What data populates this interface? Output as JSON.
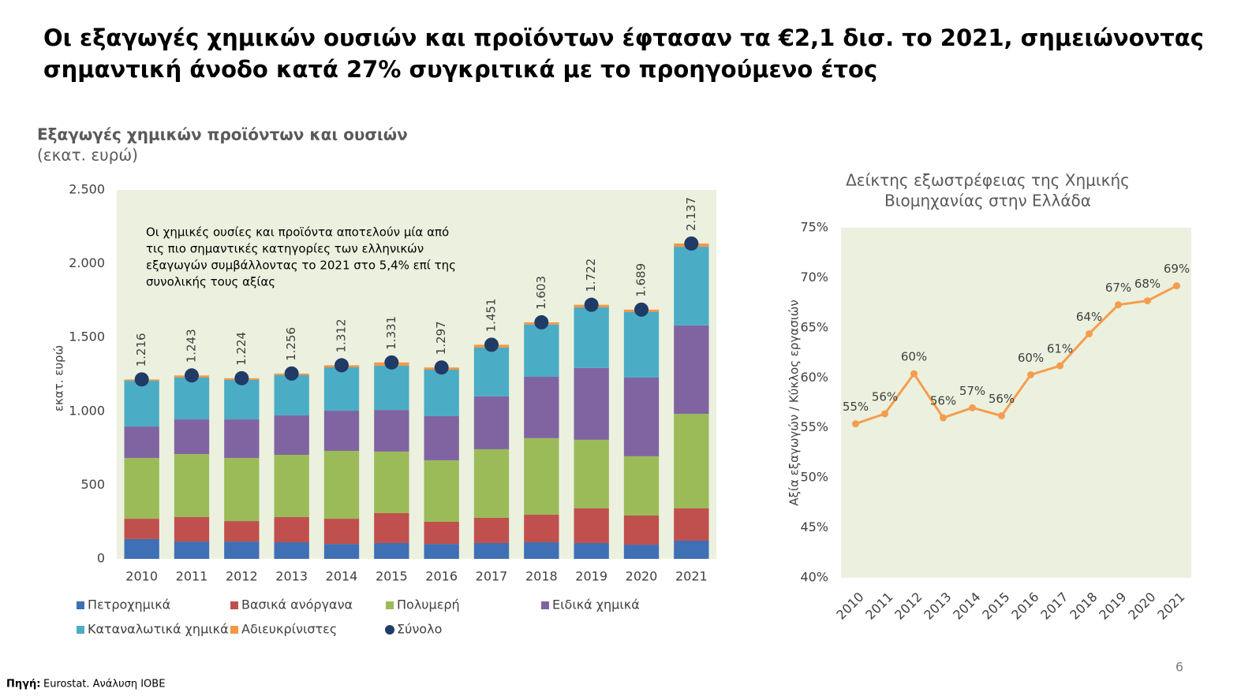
{
  "headline": [
    "Οι εξαγωγές χημικών ουσιών και προϊόντων έφτασαν τα €2,1 δισ. το 2021, σημειώνοντας",
    "σημαντική άνοδο κατά 27% συγκριτικά με το προηγούμενο έτος"
  ],
  "chart_data": [
    {
      "type": "bar",
      "stacked": true,
      "title": "Εξαγωγές χημικών προϊόντων και ουσιών",
      "subtitle": "(εκατ. ευρώ)",
      "y_label": "εκατ. ευρώ",
      "annotation": [
        "Οι χημικές ουσίες και προϊόντα αποτελούν μία από",
        "τις πιο σημαντικές κατηγορίες των ελληνικών",
        "εξαγωγών συμβάλλοντας το 2021 στο 5,4% επί της",
        "συνολικής τους αξίας"
      ],
      "categories": [
        "2010",
        "2011",
        "2012",
        "2013",
        "2014",
        "2015",
        "2016",
        "2017",
        "2018",
        "2019",
        "2020",
        "2021"
      ],
      "series": [
        {
          "name": "Πετροχημικά",
          "color": "#3f6fb5",
          "values": [
            134,
            117,
            117,
            112,
            101,
            107,
            101,
            107,
            112,
            107,
            96,
            123
          ]
        },
        {
          "name": "Βασικά ανόργανα",
          "color": "#c0504d",
          "values": [
            138,
            166,
            139,
            171,
            171,
            203,
            150,
            171,
            187,
            235,
            198,
            219
          ]
        },
        {
          "name": "Πολυμερή",
          "color": "#9bbb59",
          "values": [
            412,
            427,
            428,
            422,
            460,
            417,
            417,
            465,
            519,
            465,
            401,
            641
          ]
        },
        {
          "name": "Ειδικά χημικά",
          "color": "#8064a2",
          "values": [
            213,
            235,
            261,
            267,
            272,
            282,
            299,
            358,
            416,
            487,
            534,
            599
          ]
        },
        {
          "name": "Καταναλωτικά χημικά",
          "color": "#4bacc6",
          "values": [
            310,
            284,
            268,
            273,
            294,
            300,
            315,
            331,
            354,
            411,
            445,
            533
          ]
        },
        {
          "name": "Αδιευκρίνιστες",
          "color": "#f79646",
          "values": [
            9,
            14,
            11,
            11,
            14,
            22,
            15,
            19,
            15,
            17,
            15,
            22
          ]
        }
      ],
      "total": {
        "name": "Σύνολο",
        "color": "#1f3b66",
        "values": [
          1216,
          1243,
          1224,
          1256,
          1312,
          1331,
          1297,
          1451,
          1603,
          1722,
          1689,
          2137
        ],
        "value_labels": [
          "1.216",
          "1.243",
          "1.224",
          "1.256",
          "1.312",
          "1.331",
          "1.297",
          "1.451",
          "1.603",
          "1.722",
          "1.689",
          "2.137"
        ]
      },
      "ylim": [
        0,
        2500
      ],
      "yticks": [
        0,
        500,
        {
          "value": 1000,
          "label": "1.000"
        },
        {
          "value": 1500,
          "label": "1.500"
        },
        {
          "value": 2000,
          "label": "2.000"
        },
        {
          "value": 2500,
          "label": "2.500"
        }
      ],
      "grid": false,
      "background": "#ebf1de",
      "legend": "bottom"
    },
    {
      "type": "line",
      "title": [
        "Δείκτης εξωστρέφειας της Χημικής",
        "Βιομηχανίας στην Ελλάδα"
      ],
      "y_label": "Αξία εξαγωγών / Κύκλος εργασιών",
      "categories": [
        "2010",
        "2011",
        "2012",
        "2013",
        "2014",
        "2015",
        "2016",
        "2017",
        "2018",
        "2019",
        "2020",
        "2021"
      ],
      "values": [
        55.4,
        56.4,
        60.4,
        56.0,
        57.0,
        56.2,
        60.3,
        61.2,
        64.4,
        67.3,
        67.7,
        69.2
      ],
      "value_labels": [
        "55%",
        "56%",
        "60%",
        "56%",
        "57%",
        "56%",
        "60%",
        "61%",
        "64%",
        "67%",
        "68%",
        "69%"
      ],
      "color": "#f59d4f",
      "ylim": [
        40,
        75
      ],
      "yticks": [
        {
          "value": 40,
          "label": "40%"
        },
        {
          "value": 45,
          "label": "45%"
        },
        {
          "value": 50,
          "label": "50%"
        },
        {
          "value": 55,
          "label": "55%"
        },
        {
          "value": 60,
          "label": "60%"
        },
        {
          "value": 65,
          "label": "65%"
        },
        {
          "value": 70,
          "label": "70%"
        },
        {
          "value": 75,
          "label": "75%"
        }
      ],
      "grid": false,
      "background": "#ebf1de"
    }
  ],
  "source_label": "Πηγή:",
  "source_text": "Eurostat. Ανάλυση ΙΟΒΕ",
  "page_number": 6
}
